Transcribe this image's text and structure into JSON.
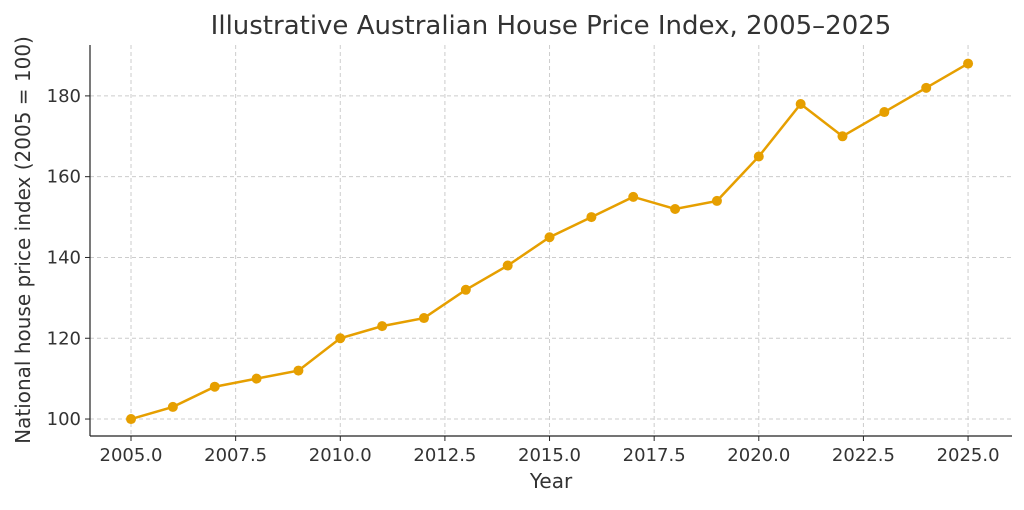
{
  "chart_data": {
    "type": "line",
    "title": "Illustrative Australian House Price Index, 2005–2025",
    "xlabel": "Year",
    "ylabel": "National house price index (2005 = 100)",
    "x": [
      2005,
      2006,
      2007,
      2008,
      2009,
      2010,
      2011,
      2012,
      2013,
      2014,
      2015,
      2016,
      2017,
      2018,
      2019,
      2020,
      2021,
      2022,
      2023,
      2024,
      2025
    ],
    "series": [
      {
        "values": [
          100,
          103,
          108,
          110,
          112,
          120,
          123,
          125,
          132,
          138,
          145,
          150,
          155,
          152,
          154,
          165,
          178,
          170,
          176,
          182,
          188
        ],
        "color": "#E69F00",
        "marker": "circle"
      }
    ],
    "xlim": [
      2004.02,
      2026.05
    ],
    "ylim": [
      95.8,
      192.6
    ],
    "xticks": [
      "2005.0",
      "2007.5",
      "2010.0",
      "2012.5",
      "2015.0",
      "2017.5",
      "2020.0",
      "2022.5",
      "2025.0"
    ],
    "yticks": [
      "100",
      "120",
      "140",
      "160",
      "180"
    ],
    "grid": true,
    "legend": "none"
  }
}
